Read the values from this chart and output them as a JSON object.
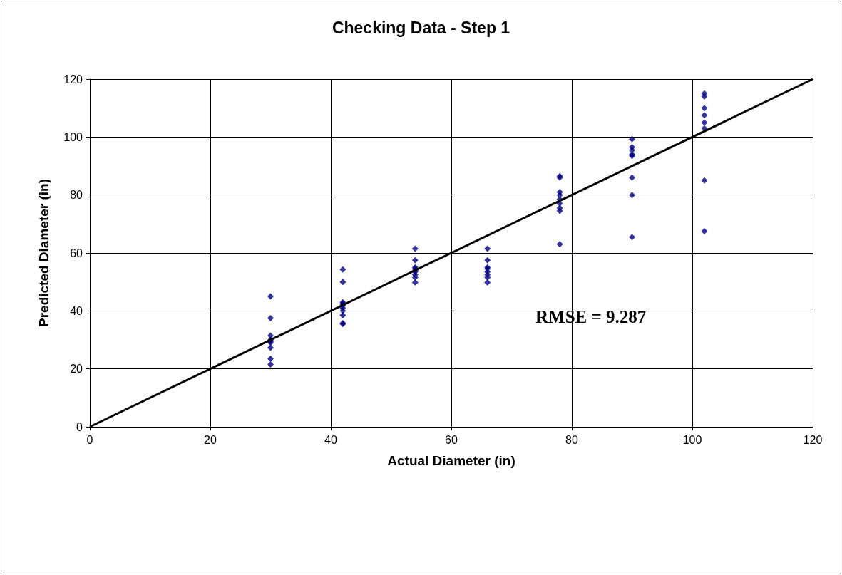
{
  "chart_data": {
    "type": "scatter",
    "title": "Checking Data - Step 1",
    "xlabel": "Actual Diameter (in)",
    "ylabel": "Predicted Diameter (in)",
    "xlim": [
      0,
      120
    ],
    "xticks": [
      0,
      20,
      40,
      60,
      80,
      100,
      120
    ],
    "ylim": [
      0,
      120
    ],
    "yticks": [
      0,
      20,
      40,
      60,
      80,
      100,
      120
    ],
    "grid": true,
    "marker": "diamond",
    "annotations": [
      "RMSE = 9.287"
    ],
    "series": [
      {
        "color": "#000080",
        "x": [
          30,
          30,
          30,
          30,
          30,
          30,
          30,
          30,
          30,
          42,
          42,
          42,
          42,
          42,
          42,
          42,
          42,
          42,
          42,
          54,
          54,
          54,
          54,
          54,
          54,
          54,
          54,
          54,
          66,
          66,
          66,
          66,
          66,
          66,
          66,
          66,
          78,
          78,
          78,
          78,
          78,
          78,
          78,
          78,
          78,
          90,
          90,
          90,
          90,
          90,
          90,
          90,
          90,
          102,
          102,
          102,
          102,
          102,
          102,
          102,
          102
        ],
        "values": [
          45,
          37.5,
          31.5,
          30,
          29.5,
          29,
          27.3,
          23.5,
          21.5,
          54.3,
          50,
          43,
          42.5,
          42,
          41,
          40,
          38.5,
          35.8,
          35.5,
          61.5,
          57.5,
          55,
          54.5,
          54,
          53.5,
          52.5,
          51.5,
          49.8,
          61.5,
          57.5,
          55,
          54.5,
          53.5,
          52.5,
          51.5,
          49.8,
          86.5,
          86,
          81,
          80,
          78.5,
          77,
          75.5,
          74.5,
          63,
          99.3,
          96.5,
          95.5,
          94,
          93.5,
          86,
          80,
          65.5,
          115,
          114,
          110,
          107.5,
          105,
          103,
          85,
          67.5
        ]
      },
      {
        "type": "line",
        "color": "#000000",
        "x": [
          0,
          120
        ],
        "values": [
          0,
          120
        ],
        "marker": "none",
        "line_style": "solid"
      }
    ]
  }
}
